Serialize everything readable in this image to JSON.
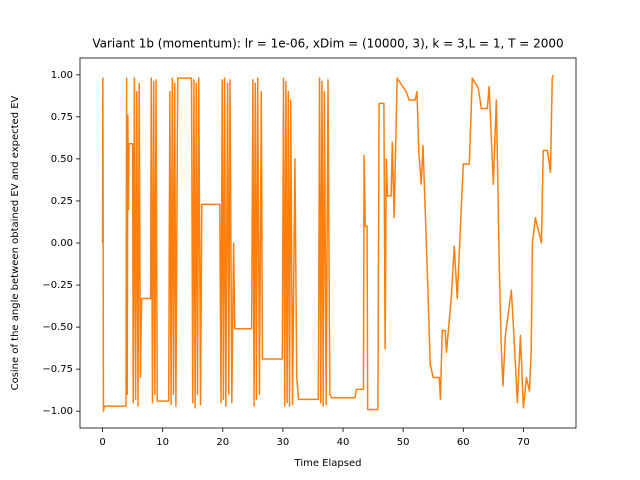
{
  "chart_data": {
    "type": "line",
    "title": "Variant 1b (momentum): lr = 1e-06, xDim = (10000, 3), k = 3,L = 1, T = 2000",
    "xlabel": "Time Elapsed",
    "ylabel": "Cosine of the angle between obtained EV and expected EV",
    "xlim": [
      -3.75,
      78.75
    ],
    "ylim": [
      -1.1,
      1.1
    ],
    "xticks": [
      0,
      10,
      20,
      30,
      40,
      50,
      60,
      70
    ],
    "yticks": [
      {
        "value": -1,
        "label": "−1.00"
      },
      {
        "value": -0.75,
        "label": "−0.75"
      },
      {
        "value": -0.5,
        "label": "−0.50"
      },
      {
        "value": -0.25,
        "label": "−0.25"
      },
      {
        "value": 0,
        "label": "0.00"
      },
      {
        "value": 0.25,
        "label": "0.25"
      },
      {
        "value": 0.5,
        "label": "0.50"
      },
      {
        "value": 0.75,
        "label": "0.75"
      },
      {
        "value": 1,
        "label": "1.00"
      }
    ],
    "grid": false,
    "x": [
      0,
      0.05,
      0.15,
      0.3,
      3.9,
      4.0,
      4.1,
      4.2,
      4.3,
      4.4,
      5.0,
      5.1,
      5.3,
      5.5,
      5.7,
      5.9,
      6.1,
      6.3,
      6.5,
      8.0,
      8.1,
      8.3,
      8.5,
      8.7,
      8.9,
      9.1,
      11.0,
      11.2,
      11.4,
      11.6,
      11.8,
      12.0,
      12.2,
      12.5,
      14.8,
      15.0,
      15.2,
      15.4,
      15.6,
      15.8,
      16.0,
      16.3,
      16.5,
      19.5,
      19.7,
      19.9,
      20.1,
      20.3,
      20.5,
      20.8,
      21.0,
      21.2,
      21.5,
      21.8,
      22.0,
      24.8,
      25.0,
      25.2,
      25.4,
      25.6,
      25.8,
      26.1,
      26.4,
      26.6,
      29.9,
      30.1,
      30.3,
      30.5,
      30.7,
      30.9,
      31.1,
      31.3,
      31.6,
      32.0,
      32.3,
      32.6,
      35.9,
      36.1,
      36.3,
      36.5,
      36.7,
      36.9,
      37.2,
      37.5,
      37.8,
      38.1,
      42.0,
      42.2,
      43.4,
      43.5,
      43.7,
      44.0,
      44.1,
      45.8,
      46.0,
      46.8,
      47.0,
      47.2,
      47.4,
      48.0,
      48.2,
      48.5,
      49.0,
      50.5,
      51.0,
      52.0,
      52.3,
      52.6,
      53.0,
      53.3,
      54.0,
      54.5,
      55.0,
      56.0,
      56.2,
      56.5,
      57.0,
      57.2,
      58.0,
      58.5,
      59.0,
      60.0,
      61.0,
      61.5,
      62.5,
      63.0,
      64.0,
      64.3,
      65.0,
      65.5,
      66.0,
      66.3,
      66.6,
      67.0,
      68.0,
      68.5,
      69.0,
      69.5,
      70.0,
      70.5,
      71.0,
      71.3,
      71.5,
      72.0,
      73.0,
      73.3,
      74.0,
      74.5,
      74.8,
      75.0
    ],
    "series": [
      {
        "color": "#ff7f0e",
        "values": [
          0,
          0.98,
          -1.0,
          -0.97,
          -0.97,
          0.98,
          -0.9,
          0.76,
          0.2,
          0.59,
          0.59,
          -0.95,
          0.98,
          -0.93,
          0.9,
          -0.97,
          0.95,
          -0.8,
          -0.33,
          -0.33,
          0.98,
          -0.95,
          0.96,
          -0.9,
          0.97,
          -0.94,
          -0.94,
          0.9,
          -0.96,
          0.98,
          -0.9,
          0.95,
          -0.97,
          0.98,
          0.98,
          -0.95,
          0.97,
          -0.98,
          0.95,
          -0.9,
          0.98,
          -0.96,
          0.23,
          0.23,
          -0.95,
          0.97,
          -0.93,
          0.98,
          -0.97,
          0.95,
          -0.9,
          0.97,
          -0.95,
          0.0,
          -0.51,
          -0.51,
          0.97,
          -0.97,
          0.95,
          -0.93,
          0.98,
          -0.9,
          0.9,
          -0.69,
          -0.69,
          0.98,
          -0.97,
          0.96,
          -0.95,
          0.9,
          -0.97,
          0.85,
          -0.96,
          0.5,
          -0.8,
          -0.93,
          -0.93,
          0.98,
          -0.95,
          0.96,
          -0.97,
          0.9,
          -0.96,
          0.97,
          -0.9,
          -0.92,
          -0.92,
          -0.87,
          -0.87,
          0.52,
          0.1,
          0.1,
          -0.99,
          -0.99,
          0.83,
          0.83,
          -0.63,
          0.5,
          0.28,
          0.28,
          0.6,
          0.15,
          0.98,
          0.9,
          0.85,
          0.85,
          0.9,
          0.55,
          0.35,
          0.58,
          -0.15,
          -0.72,
          -0.8,
          -0.8,
          -0.93,
          -0.52,
          -0.52,
          -0.65,
          -0.33,
          -0.02,
          -0.33,
          0.47,
          0.47,
          0.98,
          0.92,
          0.8,
          0.8,
          0.93,
          0.35,
          0.85,
          -0.15,
          -0.6,
          -0.85,
          -0.55,
          -0.28,
          -0.6,
          -0.95,
          -0.55,
          -0.98,
          -0.8,
          -0.88,
          -0.65,
          0.0,
          0.15,
          0.0,
          0.55,
          0.55,
          0.42,
          0.98,
          1.0
        ]
      }
    ]
  }
}
